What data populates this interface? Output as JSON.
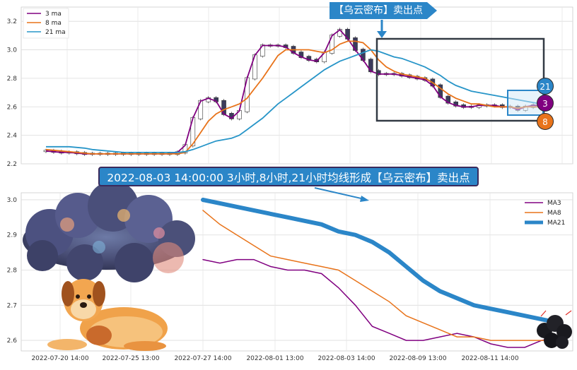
{
  "chart_data": [
    {
      "type": "line",
      "panel": "top",
      "title": "",
      "xlabel": "",
      "ylabel": "",
      "ylim": [
        2.2,
        3.3
      ],
      "yticks": [
        "2.2",
        "2.4",
        "2.6",
        "2.8",
        "3.0",
        "3.2"
      ],
      "grid": true,
      "legend_placement": "top-left",
      "legend": [
        "3 ma",
        "8 ma",
        "21 ma"
      ],
      "colors": {
        "ma3": "#800080",
        "ma8": "#e8731a",
        "ma21": "#2795c8",
        "candle_up": "#ffffff",
        "candle_down": "#3b3b5c"
      },
      "series": [
        {
          "name": "3 ma",
          "values": [
            2.29,
            2.285,
            2.28,
            2.28,
            2.275,
            2.27,
            2.27,
            2.27,
            2.27,
            2.27,
            2.27,
            2.27,
            2.27,
            2.27,
            2.27,
            2.27,
            2.27,
            2.28,
            2.33,
            2.52,
            2.64,
            2.66,
            2.64,
            2.55,
            2.52,
            2.57,
            2.8,
            2.96,
            3.03,
            3.03,
            3.03,
            3.02,
            2.98,
            2.95,
            2.93,
            2.92,
            2.98,
            3.1,
            3.14,
            3.08,
            3.0,
            2.93,
            2.85,
            2.83,
            2.83,
            2.83,
            2.82,
            2.81,
            2.8,
            2.79,
            2.75,
            2.67,
            2.63,
            2.61,
            2.6,
            2.6,
            2.61,
            2.61,
            2.61,
            2.6,
            2.6,
            2.58,
            2.6,
            2.61,
            2.61
          ]
        },
        {
          "name": "8 ma",
          "values": [
            2.3,
            2.295,
            2.29,
            2.285,
            2.28,
            2.275,
            2.27,
            2.27,
            2.27,
            2.27,
            2.27,
            2.27,
            2.27,
            2.27,
            2.27,
            2.27,
            2.27,
            2.27,
            2.28,
            2.34,
            2.42,
            2.5,
            2.55,
            2.58,
            2.6,
            2.62,
            2.66,
            2.73,
            2.8,
            2.88,
            2.96,
            3.0,
            3.0,
            3.0,
            3.0,
            2.99,
            2.98,
            3.0,
            3.04,
            3.06,
            3.06,
            3.05,
            3.0,
            2.93,
            2.88,
            2.85,
            2.83,
            2.82,
            2.81,
            2.8,
            2.77,
            2.73,
            2.69,
            2.66,
            2.64,
            2.62,
            2.62,
            2.61,
            2.6,
            2.6,
            2.6,
            2.59,
            2.6,
            2.6,
            2.6
          ]
        },
        {
          "name": "21 ma",
          "values": [
            2.32,
            2.32,
            2.32,
            2.32,
            2.315,
            2.31,
            2.3,
            2.295,
            2.29,
            2.285,
            2.28,
            2.28,
            2.28,
            2.28,
            2.28,
            2.28,
            2.28,
            2.28,
            2.285,
            2.3,
            2.32,
            2.34,
            2.36,
            2.37,
            2.38,
            2.4,
            2.44,
            2.48,
            2.52,
            2.57,
            2.62,
            2.66,
            2.7,
            2.74,
            2.78,
            2.82,
            2.86,
            2.89,
            2.92,
            2.94,
            2.96,
            2.98,
            3.0,
            2.99,
            2.97,
            2.95,
            2.94,
            2.92,
            2.9,
            2.88,
            2.85,
            2.82,
            2.78,
            2.75,
            2.73,
            2.71,
            2.7,
            2.69,
            2.68,
            2.67,
            2.66,
            2.65,
            2.64,
            2.63,
            2.62
          ]
        }
      ]
    },
    {
      "type": "line",
      "panel": "bottom",
      "title": "",
      "xlabel": "",
      "ylabel": "",
      "ylim": [
        2.57,
        3.02
      ],
      "yticks": [
        "2.6",
        "2.7",
        "2.8",
        "2.9",
        "3.0"
      ],
      "x_tick_labels": [
        "2022-07-20 14:00",
        "2022-07-25 13:00",
        "2022-07-27 14:00",
        "2022-08-01 13:00",
        "2022-08-03 14:00",
        "2022-08-09 13:00",
        "2022-08-11 14:00"
      ],
      "grid": true,
      "legend_placement": "top-right",
      "legend": [
        "MA3",
        "MA8",
        "MA21"
      ],
      "series": [
        {
          "name": "MA3",
          "values": [
            2.83,
            2.82,
            2.83,
            2.83,
            2.81,
            2.8,
            2.8,
            2.79,
            2.75,
            2.7,
            2.64,
            2.62,
            2.6,
            2.6,
            2.61,
            2.62,
            2.61,
            2.59,
            2.58,
            2.58,
            2.6,
            2.61
          ]
        },
        {
          "name": "MA8",
          "values": [
            2.97,
            2.93,
            2.9,
            2.87,
            2.84,
            2.83,
            2.82,
            2.81,
            2.8,
            2.77,
            2.74,
            2.71,
            2.67,
            2.65,
            2.63,
            2.61,
            2.61,
            2.6,
            2.6,
            2.6,
            2.6,
            2.6
          ]
        },
        {
          "name": "MA21",
          "values": [
            3.0,
            2.99,
            2.98,
            2.97,
            2.96,
            2.95,
            2.94,
            2.93,
            2.91,
            2.9,
            2.88,
            2.85,
            2.81,
            2.77,
            2.74,
            2.72,
            2.7,
            2.69,
            2.68,
            2.67,
            2.66,
            2.65
          ]
        }
      ]
    }
  ],
  "annotations": {
    "callout": "【乌云密布】卖出点",
    "banner": "2022-08-03 14:00:00 3小时,8小时,21小时均线形成【乌云密布】卖出点",
    "badges": [
      "21",
      "3",
      "8"
    ]
  }
}
